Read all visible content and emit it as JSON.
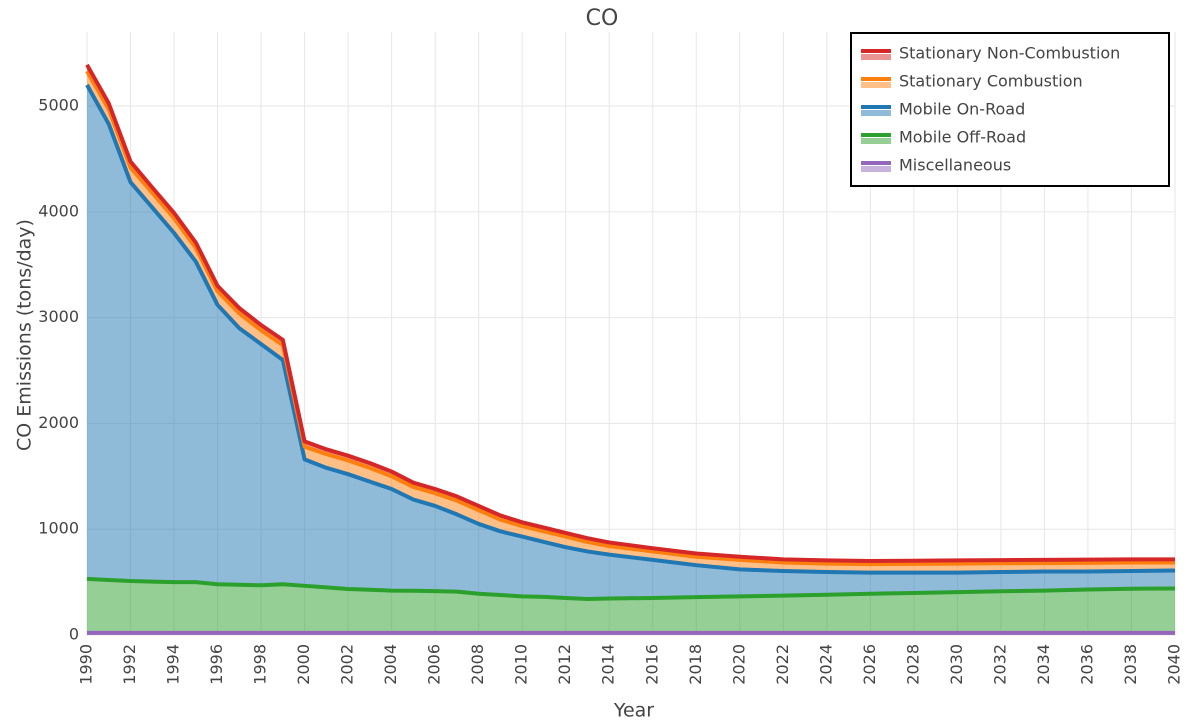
{
  "chart_data": {
    "type": "stacked_area",
    "title": "CO",
    "x_label": "Year",
    "y_label": "CO Emissions (tons/day)",
    "x": [
      1990,
      1991,
      1992,
      1993,
      1994,
      1995,
      1996,
      1997,
      1998,
      1999,
      2000,
      2001,
      2002,
      2003,
      2004,
      2005,
      2006,
      2007,
      2008,
      2009,
      2010,
      2011,
      2012,
      2013,
      2014,
      2016,
      2018,
      2020,
      2022,
      2024,
      2026,
      2028,
      2030,
      2032,
      2034,
      2036,
      2038,
      2040
    ],
    "series": [
      {
        "name": "Stationary Non-Combustion",
        "color": "#d62728",
        "values": [
          60,
          55,
          55,
          50,
          50,
          50,
          50,
          50,
          50,
          50,
          50,
          45,
          45,
          45,
          45,
          40,
          40,
          40,
          40,
          40,
          35,
          35,
          35,
          35,
          35,
          30,
          30,
          30,
          30,
          30,
          30,
          30,
          30,
          30,
          30,
          30,
          30,
          30
        ]
      },
      {
        "name": "Stationary Combustion",
        "color": "#ff7f0e",
        "values": [
          130,
          140,
          140,
          140,
          140,
          130,
          130,
          140,
          130,
          140,
          120,
          130,
          130,
          130,
          120,
          120,
          120,
          130,
          130,
          110,
          100,
          100,
          100,
          90,
          80,
          80,
          80,
          90,
          80,
          80,
          80,
          82,
          85,
          83,
          80,
          82,
          80,
          75
        ]
      },
      {
        "name": "Mobile On-Road",
        "color": "#1f77b4",
        "values": [
          4670,
          4310,
          3770,
          3535,
          3300,
          3030,
          2640,
          2425,
          2280,
          2120,
          1195,
          1130,
          1085,
          1022,
          960,
          862,
          805,
          730,
          660,
          602,
          565,
          520,
          480,
          450,
          415,
          360,
          302,
          255,
          233,
          215,
          200,
          193,
          185,
          182,
          180,
          170,
          168,
          170
        ]
      },
      {
        "name": "Mobile Off-Road",
        "color": "#2ca02c",
        "values": [
          510,
          500,
          490,
          485,
          480,
          480,
          460,
          455,
          450,
          460,
          445,
          430,
          415,
          408,
          400,
          398,
          395,
          390,
          370,
          358,
          345,
          340,
          330,
          320,
          325,
          330,
          338,
          345,
          352,
          360,
          370,
          377,
          385,
          393,
          400,
          410,
          417,
          420
        ]
      },
      {
        "name": "Miscellaneous",
        "color": "#9467bd",
        "values": [
          20,
          20,
          20,
          20,
          20,
          20,
          20,
          20,
          20,
          20,
          20,
          20,
          20,
          20,
          20,
          20,
          20,
          20,
          20,
          20,
          20,
          20,
          20,
          20,
          20,
          20,
          20,
          20,
          20,
          20,
          20,
          20,
          20,
          20,
          20,
          20,
          20,
          20
        ]
      }
    ],
    "xlim": [
      1990,
      2040
    ],
    "xticks": [
      1990,
      1992,
      1994,
      1996,
      1998,
      2000,
      2002,
      2004,
      2006,
      2008,
      2010,
      2012,
      2014,
      2016,
      2018,
      2020,
      2022,
      2024,
      2026,
      2028,
      2030,
      2032,
      2034,
      2036,
      2038,
      2040
    ],
    "ylim": [
      0,
      5700
    ],
    "yticks": [
      0,
      1000,
      2000,
      3000,
      4000,
      5000
    ],
    "grid": true,
    "legend": "top-right"
  }
}
